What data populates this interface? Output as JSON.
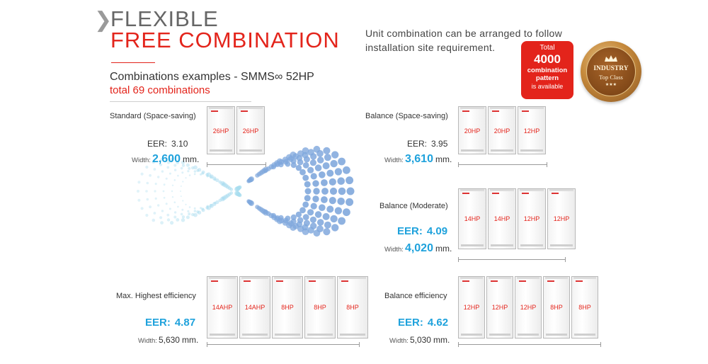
{
  "header": {
    "chevron": "❯",
    "title_line1": "FLEXIBLE",
    "title_line2": "FREE COMBINATION",
    "intro": "Unit combination can be arranged to follow installation site requirement."
  },
  "combinations": {
    "heading": "Combinations examples - SMMS∞ 52HP",
    "subheading": "total 69 combinations"
  },
  "badge": {
    "line1": "Total",
    "line2": "4000",
    "line3": "combination",
    "line4": "pattern",
    "line5": "is available"
  },
  "seal": {
    "line1": "INDUSTRY",
    "line2": "Top Class",
    "stars": "★★★"
  },
  "colors": {
    "accent_red": "#e3241b",
    "accent_blue": "#1fa2dc"
  },
  "groups": {
    "standard": {
      "label": "Standard (Space-saving)",
      "eer_label": "EER:",
      "eer_value": "3.10",
      "width_label": "Width:",
      "width_value": "2,600",
      "width_unit": "mm.",
      "units": [
        "26HP",
        "26HP"
      ]
    },
    "balance_space": {
      "label": "Balance (Space-saving)",
      "eer_label": "EER:",
      "eer_value": "3.95",
      "width_label": "Width:",
      "width_value": "3,610",
      "width_unit": "mm.",
      "units": [
        "20HP",
        "20HP",
        "12HP"
      ]
    },
    "balance_moderate": {
      "label": "Balance (Moderate)",
      "eer_label": "EER:",
      "eer_value": "4.09",
      "width_label": "Width:",
      "width_value": "4,020",
      "width_unit": "mm.",
      "units": [
        "14HP",
        "14HP",
        "12HP",
        "12HP"
      ]
    },
    "max_efficiency": {
      "label": "Max. Highest efficiency",
      "eer_label": "EER:",
      "eer_value": "4.87",
      "width_label": "Width:",
      "width_value": "5,630",
      "width_unit": "mm.",
      "units": [
        "14AHP",
        "14AHP",
        "8HP",
        "8HP",
        "8HP"
      ]
    },
    "balance_efficiency": {
      "label": "Balance efficiency",
      "eer_label": "EER:",
      "eer_value": "4.62",
      "width_label": "Width:",
      "width_value": "5,030",
      "width_unit": "mm.",
      "units": [
        "12HP",
        "12HP",
        "12HP",
        "8HP",
        "8HP"
      ]
    }
  }
}
